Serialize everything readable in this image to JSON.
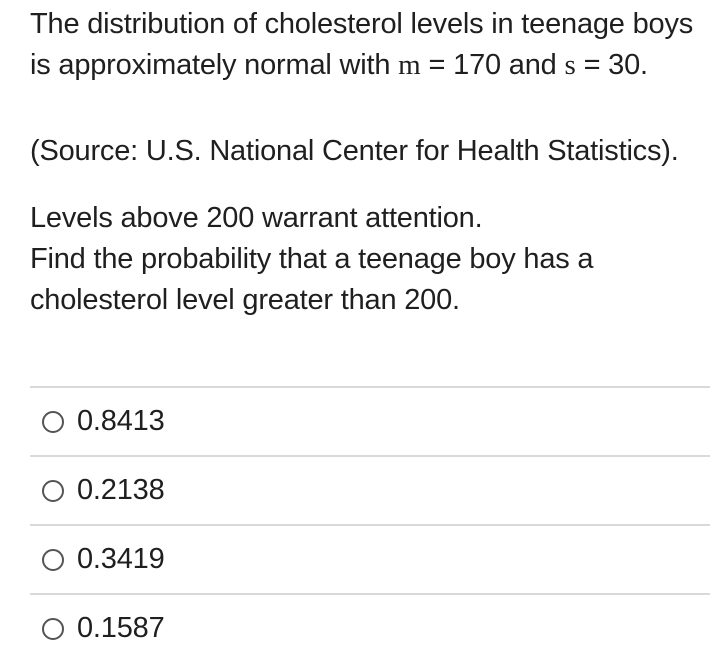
{
  "question": {
    "paragraph1": {
      "line1": "The distribution of cholesterol levels in teenage boys",
      "line2_seg1": "is approximately normal with ",
      "line2_mu": "m",
      "line2_seg2": " = 170 and ",
      "line2_sigma": "s",
      "line2_seg3": " = 30.",
      "source_line": "(Source: U.S. National Center for Health Statistics)."
    },
    "paragraph2": {
      "line1": "Levels above 200 warrant attention.",
      "line2": "Find the probability that a teenage boy has a",
      "line3": "cholesterol level greater than 200."
    }
  },
  "options": [
    {
      "label": "0.8413",
      "selected": false
    },
    {
      "label": "0.2138",
      "selected": false
    },
    {
      "label": "0.3419",
      "selected": false
    },
    {
      "label": "0.1587",
      "selected": false
    }
  ],
  "colors": {
    "background": "#ffffff",
    "text": "#1f1f1f",
    "divider": "#d9d9d9",
    "radio_border": "#545454"
  }
}
